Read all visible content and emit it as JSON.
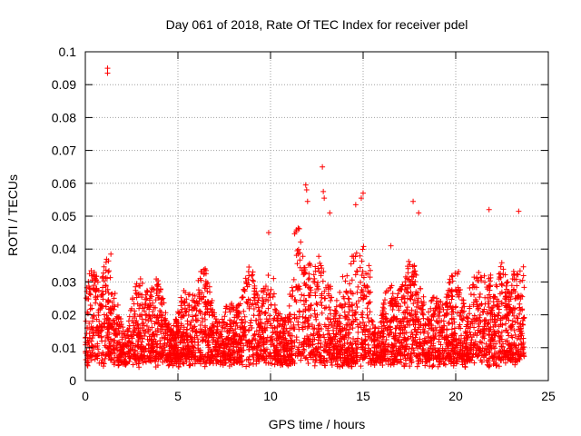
{
  "chart_data": {
    "type": "scatter",
    "title": "Day 061 of 2018, Rate Of TEC Index for receiver pdel",
    "xlabel": "GPS time / hours",
    "ylabel": "ROTI / TECUs",
    "xlim": [
      0,
      25
    ],
    "ylim": [
      0,
      0.1
    ],
    "x_ticks": [
      0,
      5,
      10,
      15,
      20,
      25
    ],
    "x_tick_labels": [
      "0",
      "5",
      "10",
      "15",
      "20",
      "25"
    ],
    "y_ticks": [
      0,
      0.01,
      0.02,
      0.03,
      0.04,
      0.05,
      0.06,
      0.07,
      0.08,
      0.09,
      0.1
    ],
    "y_tick_labels": [
      "0",
      "0.01",
      "0.02",
      "0.03",
      "0.04",
      "0.05",
      "0.06",
      "0.07",
      "0.08",
      "0.09",
      "0.1"
    ],
    "grid": true,
    "marker": "+",
    "color": "#ff0000",
    "series": [
      {
        "name": "ROTI",
        "x_range": [
          0,
          23.7
        ],
        "typical_range": [
          0.005,
          0.03
        ],
        "notable_points": [
          {
            "x": 1.2,
            "y": 0.095
          },
          {
            "x": 1.2,
            "y": 0.0935
          },
          {
            "x": 12.8,
            "y": 0.065
          },
          {
            "x": 12.85,
            "y": 0.0575
          },
          {
            "x": 12.9,
            "y": 0.0555
          },
          {
            "x": 11.9,
            "y": 0.0595
          },
          {
            "x": 11.95,
            "y": 0.058
          },
          {
            "x": 15.0,
            "y": 0.057
          },
          {
            "x": 14.9,
            "y": 0.0555
          },
          {
            "x": 17.7,
            "y": 0.0545
          },
          {
            "x": 12.0,
            "y": 0.0545
          },
          {
            "x": 9.9,
            "y": 0.045
          },
          {
            "x": 21.8,
            "y": 0.052
          },
          {
            "x": 23.4,
            "y": 0.0515
          },
          {
            "x": 18.0,
            "y": 0.051
          },
          {
            "x": 13.2,
            "y": 0.051
          },
          {
            "x": 14.6,
            "y": 0.0535
          },
          {
            "x": 16.5,
            "y": 0.041
          },
          {
            "x": 11.5,
            "y": 0.0385
          }
        ]
      }
    ]
  }
}
